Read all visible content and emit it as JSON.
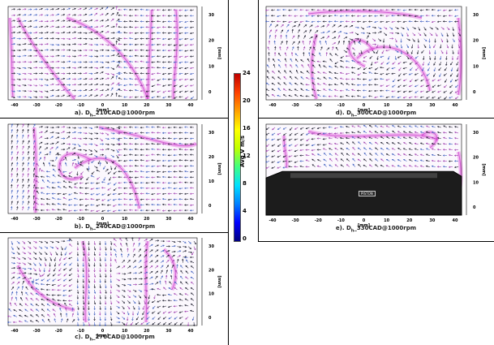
{
  "figure": {
    "colorbar": {
      "ticks": [
        "24",
        "20",
        "16",
        "12",
        "8",
        "4",
        "0"
      ],
      "label": "Avg V m/s",
      "colors": [
        "#000080",
        "#0000ff",
        "#0080ff",
        "#00e0ff",
        "#40ff80",
        "#c0ff00",
        "#ffff00",
        "#ffa000",
        "#ff4000",
        "#c00000"
      ]
    },
    "panels": [
      {
        "id": "a",
        "caption_prefix": "a). D",
        "caption_sub": "h",
        "caption_suffix": "_210CAD@1000rpm",
        "x_ticks": [
          "-40",
          "-30",
          "-20",
          "-10",
          "0",
          "10",
          "20",
          "30",
          "40"
        ],
        "y_ticks": [
          "30",
          "20",
          "10",
          "0"
        ],
        "x_unit": "[mm]",
        "y_unit": "[mm]",
        "pattern": "split",
        "has_piston": false
      },
      {
        "id": "b",
        "caption_prefix": "b). D",
        "caption_sub": "h",
        "caption_suffix": "_240CAD@1000rpm",
        "x_ticks": [
          "-40",
          "-30",
          "-20",
          "-10",
          "0",
          "10",
          "20",
          "30",
          "40"
        ],
        "y_ticks": [
          "30",
          "20",
          "10",
          "0"
        ],
        "x_unit": "[mm]",
        "y_unit": "[mm]",
        "pattern": "vortex-left",
        "has_piston": false
      },
      {
        "id": "c",
        "caption_prefix": "c). D",
        "caption_sub": "h",
        "caption_suffix": "_270CAD@1000rpm",
        "x_ticks": [
          "-40",
          "-30",
          "-20",
          "-10",
          "0",
          "10",
          "20",
          "30",
          "40"
        ],
        "y_ticks": [
          "30",
          "20",
          "10",
          "0"
        ],
        "x_unit": "[mm]",
        "y_unit": "[mm]",
        "pattern": "chaotic",
        "has_piston": false
      },
      {
        "id": "d",
        "caption_prefix": "d). D",
        "caption_sub": "h",
        "caption_suffix": "_300CAD@1000rpm",
        "x_ticks": [
          "-40",
          "-30",
          "-20",
          "-10",
          "0",
          "10",
          "20",
          "30",
          "40"
        ],
        "y_ticks": [
          "30",
          "20",
          "10",
          "0"
        ],
        "x_unit": "[mm]",
        "y_unit": "[mm]",
        "pattern": "vortex-center",
        "has_piston": false
      },
      {
        "id": "e",
        "caption_prefix": "e). D",
        "caption_sub": "h",
        "caption_suffix": "_330CAD@1000rpm",
        "x_ticks": [
          "-40",
          "-30",
          "-20",
          "-10",
          "0",
          "10",
          "20",
          "30",
          "40"
        ],
        "y_ticks": [
          "30",
          "20",
          "10",
          "0"
        ],
        "x_unit": "[mm]",
        "y_unit": "[mm]",
        "pattern": "piston",
        "has_piston": true,
        "piston_label": "PISTON"
      }
    ]
  }
}
